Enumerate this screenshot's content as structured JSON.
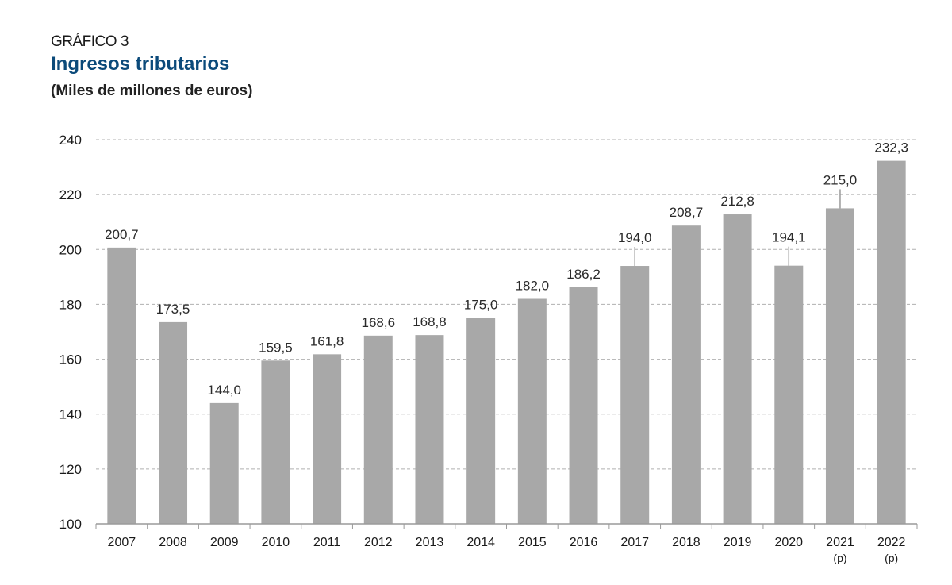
{
  "header": {
    "kicker": "GRÁFICO 3",
    "title": "Ingresos tributarios",
    "subtitle": "(Miles de millones de euros)"
  },
  "colors": {
    "bar": "#a8a8a8",
    "grid": "#b0b0b0",
    "title": "#0b4a7a",
    "axis": "#9a9a9a"
  },
  "chart_data": {
    "type": "bar",
    "title": "Ingresos tributarios",
    "subtitle": "(Miles de millones de euros)",
    "xlabel": "",
    "ylabel": "",
    "ylim": [
      100,
      240
    ],
    "yticks": [
      100,
      120,
      140,
      160,
      180,
      200,
      220,
      240
    ],
    "grid": true,
    "categories": [
      "2007",
      "2008",
      "2009",
      "2010",
      "2011",
      "2012",
      "2013",
      "2014",
      "2015",
      "2016",
      "2017",
      "2018",
      "2019",
      "2020",
      "2021",
      "2022"
    ],
    "category_notes": [
      "",
      "",
      "",
      "",
      "",
      "",
      "",
      "",
      "",
      "",
      "",
      "",
      "",
      "",
      "(p)",
      "(p)"
    ],
    "values": [
      200.7,
      173.5,
      144.0,
      159.5,
      161.8,
      168.6,
      168.8,
      175.0,
      182.0,
      186.2,
      194.0,
      208.7,
      212.8,
      194.1,
      215.0,
      232.3
    ],
    "value_labels": [
      "200,7",
      "173,5",
      "144,0",
      "159,5",
      "161,8",
      "168,6",
      "168,8",
      "175,0",
      "182,0",
      "186,2",
      "194,0",
      "208,7",
      "212,8",
      "194,1",
      "215,0",
      "232,3"
    ],
    "leader_lines": [
      false,
      false,
      false,
      false,
      false,
      false,
      false,
      false,
      false,
      false,
      true,
      false,
      false,
      true,
      true,
      false
    ]
  }
}
